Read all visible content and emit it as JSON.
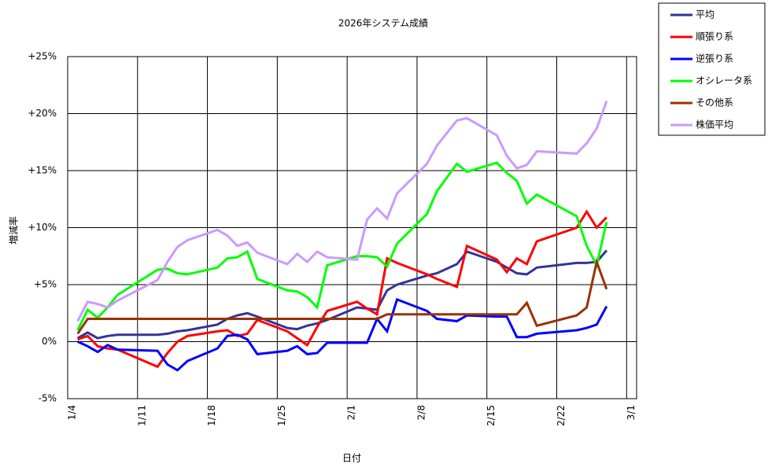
{
  "chart_data": {
    "type": "line",
    "title": "2026年システム成績",
    "xlabel": "日付",
    "ylabel": "増減率",
    "x": [
      "1/5",
      "1/6",
      "1/7",
      "1/8",
      "1/9",
      "1/13",
      "1/14",
      "1/15",
      "1/16",
      "1/19",
      "1/20",
      "1/21",
      "1/22",
      "1/23",
      "1/26",
      "1/27",
      "1/28",
      "1/29",
      "1/30",
      "2/2",
      "2/3",
      "2/4",
      "2/5",
      "2/6",
      "2/9",
      "2/10",
      "2/12",
      "2/13",
      "2/16",
      "2/17",
      "2/18",
      "2/19",
      "2/20",
      "2/24",
      "2/25",
      "2/26",
      "2/27"
    ],
    "xlim": [
      "1/4",
      "3/2"
    ],
    "xticks": [
      "1/4",
      "1/11",
      "1/18",
      "1/25",
      "2/1",
      "2/8",
      "2/15",
      "2/22",
      "3/1"
    ],
    "ylim": [
      -5,
      25
    ],
    "yticks": [
      {
        "value": -5,
        "label": "-5%"
      },
      {
        "value": 0,
        "label": "0%"
      },
      {
        "value": 5,
        "label": "+5%"
      },
      {
        "value": 10,
        "label": "+10%"
      },
      {
        "value": 15,
        "label": "+15%"
      },
      {
        "value": 20,
        "label": "+20%"
      },
      {
        "value": 25,
        "label": "+25%"
      }
    ],
    "grid": true,
    "legend": "outside-right",
    "series": [
      {
        "name": "平均",
        "color": "#333399",
        "values": [
          0.3,
          0.8,
          0.3,
          0.5,
          0.6,
          0.6,
          0.7,
          0.9,
          1.0,
          1.5,
          2.0,
          2.3,
          2.5,
          2.2,
          1.2,
          1.1,
          1.4,
          1.6,
          1.9,
          3.0,
          2.9,
          2.8,
          4.5,
          5.0,
          5.8,
          6.0,
          6.8,
          7.9,
          7.0,
          6.5,
          6.0,
          5.9,
          6.5,
          6.9,
          6.9,
          7.0,
          8.0
        ]
      },
      {
        "name": "順張り系",
        "color": "#ff0000",
        "values": [
          0.2,
          0.5,
          -0.4,
          -0.6,
          -0.7,
          -2.2,
          -1.0,
          0.0,
          0.5,
          0.9,
          1.0,
          0.5,
          0.7,
          1.9,
          0.9,
          0.3,
          -0.3,
          1.3,
          2.7,
          3.5,
          2.9,
          2.4,
          7.3,
          6.9,
          5.9,
          5.5,
          4.8,
          8.4,
          7.2,
          6.1,
          7.3,
          6.8,
          8.8,
          10.0,
          11.4,
          10.0,
          10.9
        ]
      },
      {
        "name": "逆張り系",
        "color": "#0000ff",
        "values": [
          0.0,
          -0.4,
          -0.9,
          -0.3,
          -0.7,
          -0.8,
          -2.0,
          -2.5,
          -1.7,
          -0.6,
          0.5,
          0.6,
          0.2,
          -1.1,
          -0.8,
          -0.4,
          -1.1,
          -1.0,
          -0.1,
          -0.1,
          -0.1,
          2.0,
          0.9,
          3.7,
          2.7,
          2.0,
          1.8,
          2.3,
          2.2,
          2.2,
          0.4,
          0.4,
          0.7,
          1.0,
          1.2,
          1.5,
          3.1
        ]
      },
      {
        "name": "オシレータ系",
        "color": "#00ff00",
        "values": [
          1.0,
          2.8,
          2.1,
          3.0,
          4.1,
          6.3,
          6.4,
          6.0,
          5.9,
          6.5,
          7.3,
          7.4,
          7.9,
          5.5,
          4.5,
          4.4,
          3.9,
          3.0,
          6.7,
          7.5,
          7.5,
          7.4,
          6.6,
          8.6,
          11.2,
          13.2,
          15.6,
          14.9,
          15.7,
          14.8,
          14.1,
          12.1,
          12.9,
          11.0,
          8.4,
          6.7,
          10.5
        ]
      },
      {
        "name": "その他系",
        "color": "#993300",
        "values": [
          0.7,
          2.0,
          2.0,
          2.0,
          2.0,
          2.0,
          2.0,
          2.0,
          2.0,
          2.0,
          2.0,
          2.0,
          2.0,
          2.0,
          2.0,
          2.0,
          2.0,
          2.0,
          2.0,
          2.0,
          2.0,
          2.0,
          2.4,
          2.4,
          2.4,
          2.4,
          2.4,
          2.4,
          2.4,
          2.4,
          2.4,
          3.4,
          1.4,
          2.3,
          3.0,
          7.0,
          4.6
        ]
      },
      {
        "name": "株価平均",
        "color": "#cc99ff",
        "values": [
          1.8,
          3.5,
          3.3,
          3.0,
          3.6,
          5.4,
          7.0,
          8.3,
          8.9,
          9.8,
          9.3,
          8.4,
          8.7,
          7.8,
          6.8,
          7.7,
          7.0,
          7.9,
          7.4,
          7.2,
          10.7,
          11.7,
          10.8,
          13.0,
          15.6,
          17.2,
          19.4,
          19.6,
          18.1,
          16.3,
          15.2,
          15.5,
          16.7,
          16.5,
          17.4,
          18.7,
          21.1
        ]
      }
    ]
  }
}
